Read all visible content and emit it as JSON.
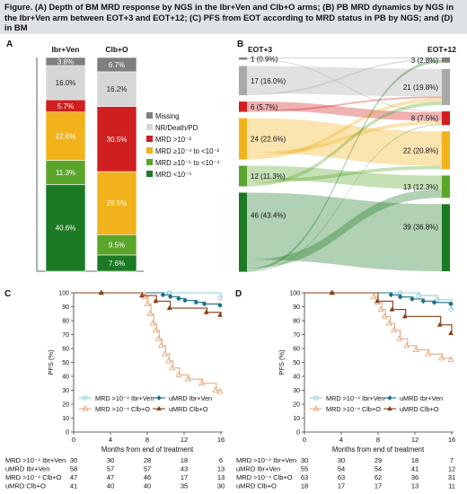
{
  "caption": "Figure. (A) Depth of BM MRD response by NGS in the Ibr+Ven and Clb+O arms; (B) PB MRD dynamics by NGS in the Ibr+Ven arm between EOT+3 and EOT+12; (C) PFS from EOT according to MRD status in PB by NGS; and (D) in BM",
  "chart_data": [
    {
      "panel": "A",
      "type": "bar",
      "stacked": true,
      "categories": [
        "Ibr+Ven",
        "Clb+O"
      ],
      "ylim": [
        0,
        100
      ],
      "legend_placement": "right",
      "series": [
        {
          "name": "MRD <10⁻⁵",
          "color": "#1c7a24",
          "values": [
            40.6,
            7.6
          ],
          "labels": [
            "40.6%",
            "7.6%"
          ]
        },
        {
          "name": "MRD ≥10⁻⁵ to <10⁻⁴",
          "color": "#5aa62a",
          "values": [
            11.3,
            9.5
          ],
          "labels": [
            "11.3%",
            "9.5%"
          ]
        },
        {
          "name": "MRD ≥10⁻⁴ to <10⁻²",
          "color": "#f2b21b",
          "values": [
            22.6,
            29.5
          ],
          "labels": [
            "22.6%",
            "29.5%"
          ]
        },
        {
          "name": "MRD >10⁻²",
          "color": "#d01f1f",
          "values": [
            5.7,
            30.5
          ],
          "labels": [
            "5.7%",
            "30.5%"
          ]
        },
        {
          "name": "NR/Death/PD",
          "color": "#d6d6d6",
          "values": [
            16.0,
            16.2
          ],
          "labels": [
            "16.0%",
            "16.2%"
          ]
        },
        {
          "name": "Missing",
          "color": "#7f7f7f",
          "values": [
            3.8,
            6.7
          ],
          "labels": [
            "3.8%",
            "6.7%"
          ]
        }
      ]
    },
    {
      "panel": "B",
      "type": "sankey",
      "timepoints": [
        "EOT+3",
        "EOT+12"
      ],
      "categories": [
        "Missing",
        "NR/Death/PD",
        "MRD >10⁻²",
        "MRD ≥10⁻⁴ to <10⁻²",
        "MRD ≥10⁻⁵ to <10⁻⁴",
        "MRD <10⁻⁵"
      ],
      "colors": [
        "#808080",
        "#a9a9a9",
        "#d01f1f",
        "#f2b21b",
        "#5aa62a",
        "#1c7a24"
      ],
      "left_values": [
        1,
        17,
        6,
        24,
        12,
        46
      ],
      "left_labels": [
        "1 (0.9%)",
        "17 (16.0%)",
        "6 (5.7%)",
        "24 (22.6%)",
        "12 (11.3%)",
        "46 (43.4%)"
      ],
      "right_values": [
        3,
        21,
        8,
        22,
        13,
        39
      ],
      "right_labels": [
        "3 (2.8%)",
        "21 (19.8%)",
        "8 (7.5%)",
        "22 (20.8%)",
        "13 (12.3%)",
        "39 (36.8%)"
      ],
      "flows": [
        {
          "from": 0,
          "to": 0,
          "value": 0.5
        },
        {
          "from": 0,
          "to": 2,
          "value": 0.5
        },
        {
          "from": 1,
          "to": 1,
          "value": 16
        },
        {
          "from": 1,
          "to": 0,
          "value": 1
        },
        {
          "from": 2,
          "to": 2,
          "value": 5
        },
        {
          "from": 2,
          "to": 1,
          "value": 1
        },
        {
          "from": 3,
          "to": 3,
          "value": 20
        },
        {
          "from": 3,
          "to": 2,
          "value": 2
        },
        {
          "from": 3,
          "to": 1,
          "value": 2
        },
        {
          "from": 4,
          "to": 4,
          "value": 8
        },
        {
          "from": 4,
          "to": 3,
          "value": 2
        },
        {
          "from": 4,
          "to": 1,
          "value": 2
        },
        {
          "from": 5,
          "to": 5,
          "value": 39
        },
        {
          "from": 5,
          "to": 4,
          "value": 5
        },
        {
          "from": 5,
          "to": 0,
          "value": 1.5
        },
        {
          "from": 5,
          "to": 2,
          "value": 0.5
        }
      ]
    },
    {
      "panel": "C",
      "type": "line",
      "ylabel": "PFS (%)",
      "xlabel": "Months from end of treatment",
      "xlim": [
        0,
        16
      ],
      "ylim": [
        0,
        100
      ],
      "x_ticks": [
        0,
        4,
        8,
        12,
        16
      ],
      "y_ticks": [
        0,
        10,
        20,
        30,
        40,
        50,
        60,
        70,
        80,
        90,
        100
      ],
      "legend_placement": "bottom-left",
      "series": [
        {
          "name": "MRD >10⁻⁴ Ibr+Ven",
          "color": "#8fcfe0",
          "marker": "circle",
          "x": [
            0,
            10.5,
            16
          ],
          "y": [
            100,
            100,
            96.5
          ]
        },
        {
          "name": "uMRD Ibr+Ven",
          "color": "#1d6f87",
          "marker": "diamond",
          "x": [
            0,
            9.8,
            10.6,
            11.5,
            12.2,
            13.4,
            14.3,
            16
          ],
          "y": [
            100,
            98.5,
            97.2,
            95.8,
            94.5,
            93.2,
            92,
            91
          ]
        },
        {
          "name": "MRD >10⁻⁴ Clb+O",
          "color": "#e8a97f",
          "marker": "triangle-open",
          "x": [
            0,
            7.8,
            8.1,
            8.4,
            8.7,
            9.0,
            9.3,
            9.6,
            10.0,
            10.4,
            10.8,
            11.5,
            12.5,
            14.0,
            15.5,
            16
          ],
          "y": [
            100,
            97,
            92,
            85,
            78,
            73,
            67,
            62,
            56,
            51,
            46,
            41,
            38,
            35,
            30,
            29
          ]
        },
        {
          "name": "uMRD Clb+O",
          "color": "#8a3d12",
          "marker": "triangle",
          "x": [
            0,
            7.5,
            9.0,
            10.5,
            14.5,
            16
          ],
          "y": [
            100,
            98,
            94,
            89,
            86,
            84
          ]
        }
      ],
      "risk_table": {
        "rows": [
          {
            "name": "MRD >10⁻⁴ Ibr+Ven",
            "counts": [
              "30",
              "30",
              "28",
              "18",
              "6"
            ]
          },
          {
            "name": "uMRD Ibr+Ven",
            "counts": [
              "58",
              "57",
              "57",
              "43",
              "13"
            ]
          },
          {
            "name": "MRD >10⁻⁴ Clb+O",
            "counts": [
              "47",
              "47",
              "46",
              "17",
              "13"
            ]
          },
          {
            "name": "uMRD Clb+O",
            "counts": [
              "41",
              "40",
              "40",
              "35",
              "30"
            ]
          }
        ]
      }
    },
    {
      "panel": "D",
      "type": "line",
      "ylabel": "PFS (%)",
      "xlabel": "Months from end of treatment",
      "xlim": [
        0,
        16
      ],
      "ylim": [
        0,
        100
      ],
      "x_ticks": [
        0,
        4,
        8,
        12,
        16
      ],
      "y_ticks": [
        0,
        10,
        20,
        30,
        40,
        50,
        60,
        70,
        80,
        90,
        100
      ],
      "legend_placement": "bottom-left",
      "series": [
        {
          "name": "MRD >10⁻⁴ Ibr+Ven",
          "color": "#8fcfe0",
          "marker": "circle",
          "x": [
            0,
            10.5,
            12.5,
            14.5,
            16
          ],
          "y": [
            100,
            100,
            98,
            95,
            88
          ]
        },
        {
          "name": "uMRD Ibr+Ven",
          "color": "#1d6f87",
          "marker": "diamond",
          "x": [
            0,
            9.5,
            10.5,
            11.8,
            13.0,
            14.2,
            16
          ],
          "y": [
            100,
            98.5,
            97,
            95.5,
            94,
            93,
            92
          ]
        },
        {
          "name": "MRD >10⁻⁴ Clb+O",
          "color": "#e8a97f",
          "marker": "triangle-open",
          "x": [
            0,
            7.6,
            8.0,
            8.4,
            8.8,
            9.3,
            9.8,
            10.4,
            11.2,
            12.2,
            13.5,
            15.0,
            16
          ],
          "y": [
            100,
            97,
            93,
            88,
            83,
            78,
            73,
            67,
            62,
            59,
            56,
            53,
            52
          ]
        },
        {
          "name": "uMRD Clb+O",
          "color": "#8a3d12",
          "marker": "triangle",
          "x": [
            0,
            8.0,
            9.6,
            11.0,
            14.8,
            16
          ],
          "y": [
            100,
            94,
            88,
            83,
            77,
            71
          ]
        }
      ],
      "risk_table": {
        "rows": [
          {
            "name": "MRD >10⁻⁴ Ibr+Ven",
            "counts": [
              "30",
              "30",
              "29",
              "18",
              "7"
            ]
          },
          {
            "name": "uMRD Ibr+Ven",
            "counts": [
              "55",
              "54",
              "54",
              "41",
              "12"
            ]
          },
          {
            "name": "MRD >10⁻⁴ Clb+O",
            "counts": [
              "63",
              "63",
              "62",
              "36",
              "31"
            ]
          },
          {
            "name": "uMRD Clb+O",
            "counts": [
              "18",
              "17",
              "17",
              "13",
              "11"
            ]
          }
        ]
      }
    }
  ]
}
